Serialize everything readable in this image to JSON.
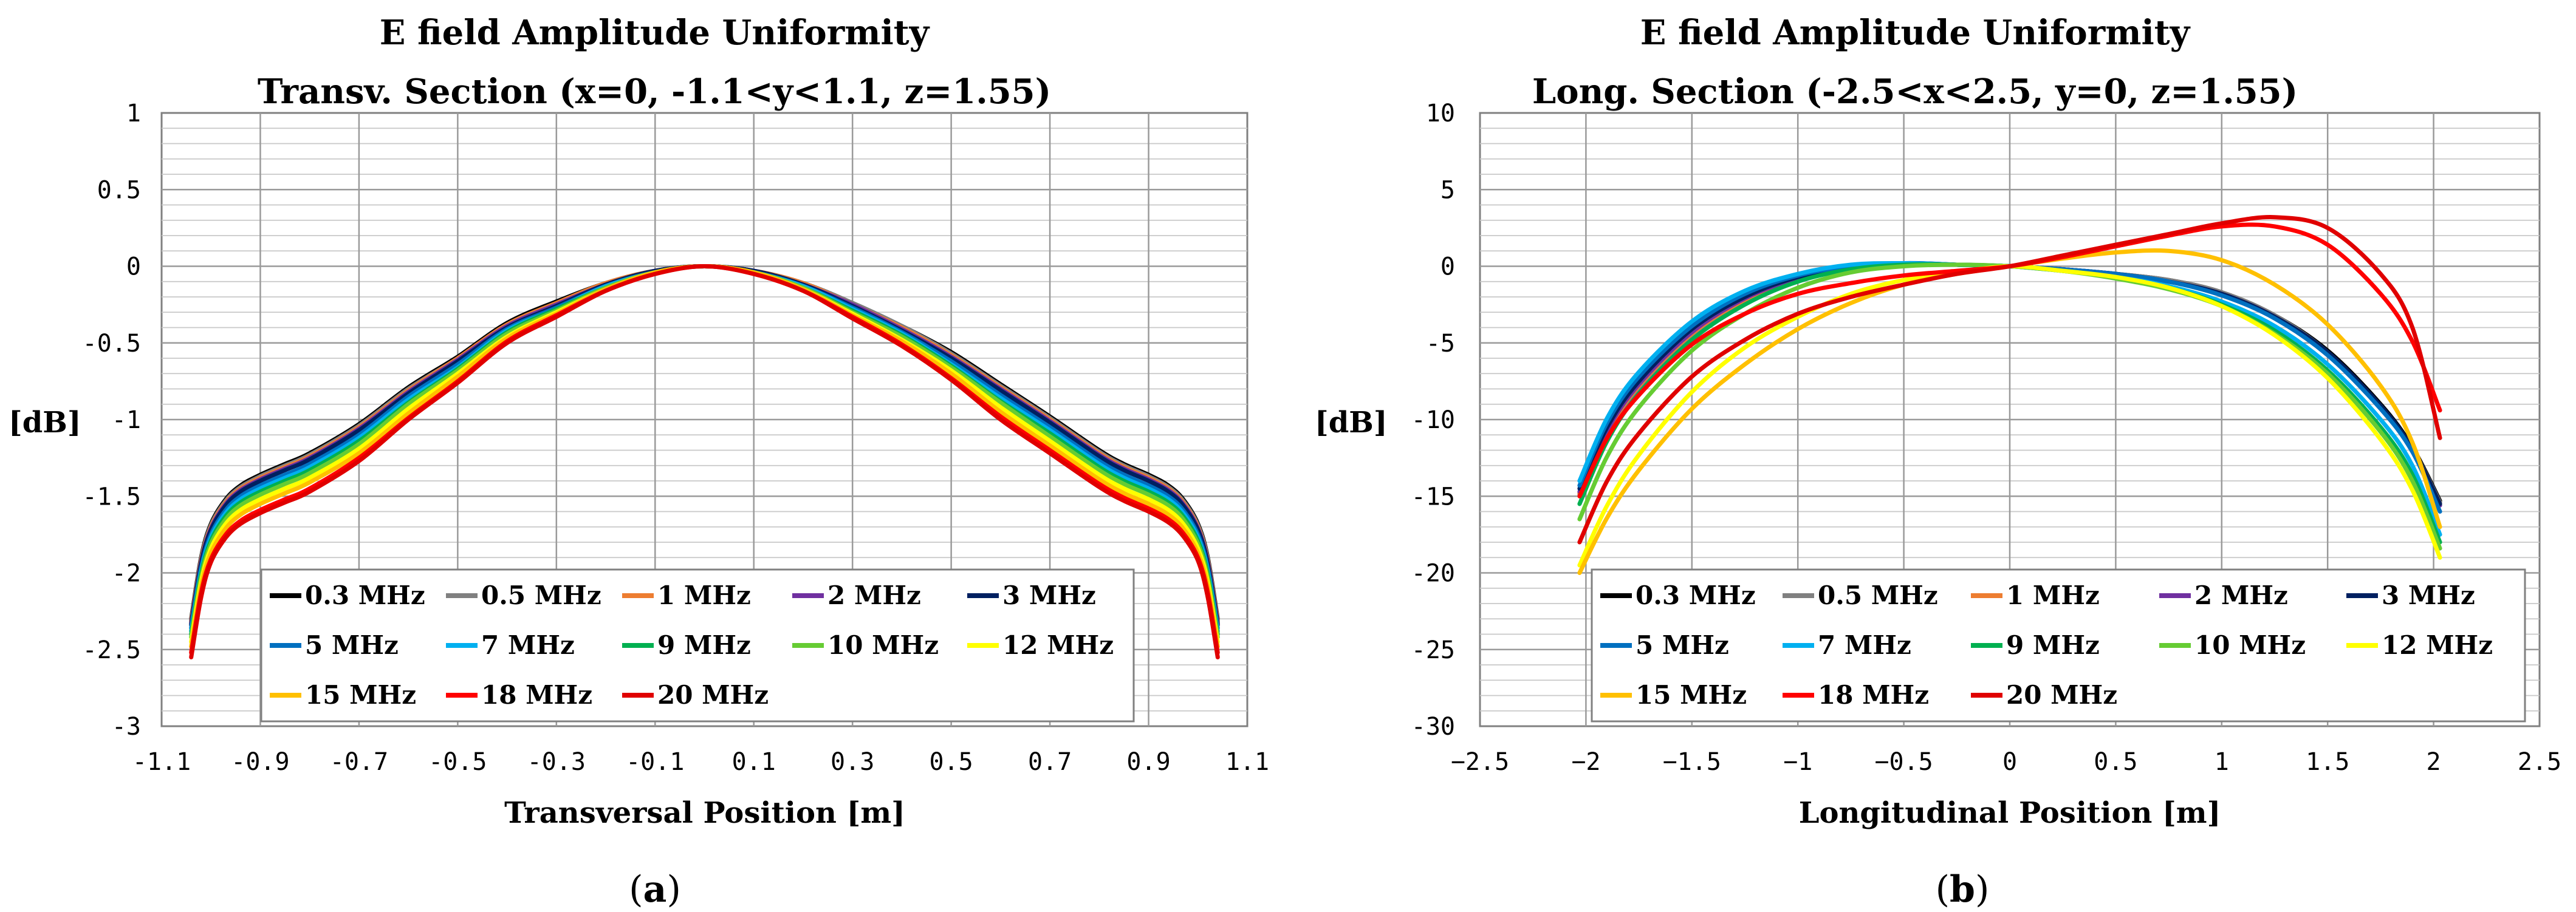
{
  "panels": [
    {
      "label": "a",
      "chart_data": {
        "type": "line",
        "title": [
          "E field Amplitude Uniformity",
          "Transv. Section (x=0, -1.1<y<1.1, z=1.55)"
        ],
        "xlabel": "Transversal Position [m]",
        "ylabel": "[dB]",
        "xlim": [
          -1.1,
          1.1
        ],
        "ylim": [
          -3,
          1
        ],
        "xticks": [
          -1.1,
          -0.9,
          -0.7,
          -0.5,
          -0.3,
          -0.1,
          0.1,
          0.3,
          0.5,
          0.7,
          0.9,
          1.1
        ],
        "xtick_labels": [
          "-1.1",
          "-0.9",
          "-0.7",
          "-0.5",
          "-0.3",
          "-0.1",
          "0.1",
          "0.3",
          "0.5",
          "0.7",
          "0.9",
          "1.1"
        ],
        "yticks": [
          -3,
          -2.5,
          -2,
          -1.5,
          -1,
          -0.5,
          0,
          0.5,
          1
        ],
        "ytick_labels": [
          "-3",
          "-2.5",
          "-2",
          "-1.5",
          "-1",
          "-0.5",
          "0",
          "0.5",
          "1"
        ],
        "minor_y_step": 0.1,
        "x": [
          -1.04,
          -1.02,
          -1.0,
          -0.97,
          -0.94,
          -0.9,
          -0.85,
          -0.8,
          -0.7,
          -0.6,
          -0.5,
          -0.4,
          -0.3,
          -0.2,
          -0.1,
          0.0,
          0.1,
          0.2,
          0.3,
          0.4,
          0.5,
          0.6,
          0.7,
          0.8,
          0.85,
          0.9,
          0.94,
          0.97,
          1.0,
          1.02,
          1.04
        ],
        "series": [
          {
            "name": "0.3 MHz",
            "color": "#000000",
            "values": [
              -2.3,
              -1.9,
              -1.68,
              -1.52,
              -1.43,
              -1.36,
              -1.29,
              -1.22,
              -1.03,
              -0.79,
              -0.59,
              -0.37,
              -0.23,
              -0.11,
              -0.03,
              0.0,
              -0.03,
              -0.11,
              -0.24,
              -0.39,
              -0.56,
              -0.77,
              -0.98,
              -1.2,
              -1.29,
              -1.36,
              -1.43,
              -1.52,
              -1.68,
              -1.9,
              -2.3
            ]
          },
          {
            "name": "0.5 MHz",
            "color": "#808080",
            "values": [
              -2.31,
              -1.91,
              -1.69,
              -1.53,
              -1.44,
              -1.37,
              -1.3,
              -1.23,
              -1.04,
              -0.8,
              -0.6,
              -0.38,
              -0.24,
              -0.11,
              -0.03,
              0.0,
              -0.03,
              -0.11,
              -0.24,
              -0.39,
              -0.57,
              -0.78,
              -0.99,
              -1.21,
              -1.3,
              -1.37,
              -1.44,
              -1.53,
              -1.69,
              -1.91,
              -2.31
            ]
          },
          {
            "name": "1 MHz",
            "color": "#ED7D31",
            "values": [
              -2.32,
              -1.92,
              -1.7,
              -1.54,
              -1.45,
              -1.38,
              -1.31,
              -1.24,
              -1.05,
              -0.81,
              -0.6,
              -0.38,
              -0.24,
              -0.11,
              -0.03,
              0.0,
              -0.03,
              -0.11,
              -0.25,
              -0.4,
              -0.58,
              -0.79,
              -1.0,
              -1.22,
              -1.31,
              -1.38,
              -1.45,
              -1.54,
              -1.7,
              -1.92,
              -2.32
            ]
          },
          {
            "name": "2 MHz",
            "color": "#7030A0",
            "values": [
              -2.33,
              -1.93,
              -1.71,
              -1.55,
              -1.46,
              -1.39,
              -1.32,
              -1.25,
              -1.06,
              -0.82,
              -0.61,
              -0.39,
              -0.25,
              -0.12,
              -0.03,
              0.0,
              -0.03,
              -0.12,
              -0.25,
              -0.41,
              -0.59,
              -0.8,
              -1.01,
              -1.23,
              -1.32,
              -1.39,
              -1.46,
              -1.55,
              -1.71,
              -1.93,
              -2.33
            ]
          },
          {
            "name": "3 MHz",
            "color": "#002060",
            "values": [
              -2.34,
              -1.94,
              -1.72,
              -1.56,
              -1.47,
              -1.4,
              -1.33,
              -1.26,
              -1.07,
              -0.83,
              -0.62,
              -0.4,
              -0.26,
              -0.12,
              -0.03,
              0.0,
              -0.03,
              -0.12,
              -0.26,
              -0.42,
              -0.6,
              -0.81,
              -1.02,
              -1.24,
              -1.33,
              -1.4,
              -1.47,
              -1.56,
              -1.72,
              -1.94,
              -2.34
            ]
          },
          {
            "name": "5 MHz",
            "color": "#0070C0",
            "values": [
              -2.36,
              -1.97,
              -1.75,
              -1.59,
              -1.5,
              -1.43,
              -1.36,
              -1.29,
              -1.1,
              -0.85,
              -0.64,
              -0.41,
              -0.27,
              -0.13,
              -0.04,
              0.0,
              -0.04,
              -0.13,
              -0.27,
              -0.43,
              -0.62,
              -0.84,
              -1.05,
              -1.27,
              -1.36,
              -1.43,
              -1.5,
              -1.59,
              -1.75,
              -1.97,
              -2.36
            ]
          },
          {
            "name": "7 MHz",
            "color": "#00B0F0",
            "values": [
              -2.38,
              -1.99,
              -1.77,
              -1.61,
              -1.52,
              -1.45,
              -1.38,
              -1.31,
              -1.12,
              -0.87,
              -0.66,
              -0.42,
              -0.28,
              -0.13,
              -0.04,
              0.0,
              -0.04,
              -0.13,
              -0.28,
              -0.44,
              -0.64,
              -0.86,
              -1.07,
              -1.29,
              -1.38,
              -1.45,
              -1.52,
              -1.61,
              -1.77,
              -1.99,
              -2.38
            ]
          },
          {
            "name": "9 MHz",
            "color": "#00B050",
            "values": [
              -2.4,
              -2.01,
              -1.79,
              -1.63,
              -1.54,
              -1.47,
              -1.4,
              -1.33,
              -1.14,
              -0.89,
              -0.67,
              -0.43,
              -0.28,
              -0.14,
              -0.04,
              0.0,
              -0.04,
              -0.14,
              -0.29,
              -0.45,
              -0.65,
              -0.88,
              -1.09,
              -1.31,
              -1.4,
              -1.47,
              -1.54,
              -1.63,
              -1.79,
              -2.01,
              -2.4
            ]
          },
          {
            "name": "10 MHz",
            "color": "#66CC33",
            "values": [
              -2.42,
              -2.03,
              -1.81,
              -1.65,
              -1.56,
              -1.49,
              -1.42,
              -1.35,
              -1.16,
              -0.9,
              -0.68,
              -0.44,
              -0.29,
              -0.14,
              -0.04,
              0.0,
              -0.04,
              -0.14,
              -0.3,
              -0.46,
              -0.66,
              -0.89,
              -1.11,
              -1.33,
              -1.42,
              -1.49,
              -1.56,
              -1.65,
              -1.81,
              -2.03,
              -2.42
            ]
          },
          {
            "name": "12 MHz",
            "color": "#FFFF00",
            "values": [
              -2.45,
              -2.06,
              -1.84,
              -1.68,
              -1.59,
              -1.52,
              -1.45,
              -1.38,
              -1.19,
              -0.93,
              -0.7,
              -0.46,
              -0.3,
              -0.15,
              -0.04,
              0.0,
              -0.04,
              -0.15,
              -0.31,
              -0.48,
              -0.68,
              -0.92,
              -1.14,
              -1.36,
              -1.45,
              -1.52,
              -1.59,
              -1.68,
              -1.84,
              -2.06,
              -2.45
            ]
          },
          {
            "name": "15 MHz",
            "color": "#FFC000",
            "values": [
              -2.48,
              -2.09,
              -1.87,
              -1.71,
              -1.62,
              -1.55,
              -1.48,
              -1.41,
              -1.22,
              -0.96,
              -0.72,
              -0.47,
              -0.31,
              -0.15,
              -0.04,
              0.0,
              -0.04,
              -0.15,
              -0.32,
              -0.49,
              -0.7,
              -0.95,
              -1.17,
              -1.39,
              -1.48,
              -1.55,
              -1.62,
              -1.71,
              -1.87,
              -2.09,
              -2.48
            ]
          },
          {
            "name": "18 MHz",
            "color": "#FF0000",
            "values": [
              -2.52,
              -2.13,
              -1.91,
              -1.75,
              -1.66,
              -1.59,
              -1.52,
              -1.45,
              -1.25,
              -0.99,
              -0.75,
              -0.49,
              -0.32,
              -0.16,
              -0.05,
              0.0,
              -0.05,
              -0.16,
              -0.33,
              -0.51,
              -0.73,
              -0.98,
              -1.2,
              -1.42,
              -1.51,
              -1.58,
              -1.65,
              -1.74,
              -1.9,
              -2.13,
              -2.52
            ]
          },
          {
            "name": "20 MHz",
            "color": "#E00000",
            "values": [
              -2.55,
              -2.16,
              -1.93,
              -1.77,
              -1.68,
              -1.61,
              -1.54,
              -1.47,
              -1.27,
              -1.0,
              -0.76,
              -0.5,
              -0.33,
              -0.16,
              -0.05,
              0.0,
              -0.05,
              -0.16,
              -0.34,
              -0.52,
              -0.74,
              -1.0,
              -1.22,
              -1.44,
              -1.53,
              -1.6,
              -1.67,
              -1.76,
              -1.92,
              -2.16,
              -2.55
            ]
          }
        ]
      }
    },
    {
      "label": "b",
      "chart_data": {
        "type": "line",
        "title": [
          "E field Amplitude Uniformity",
          "Long. Section (-2.5<x<2.5, y=0, z=1.55)"
        ],
        "xlabel": "Longitudinal Position [m]",
        "ylabel": "[dB]",
        "xlim": [
          -2.5,
          2.5
        ],
        "ylim": [
          -30,
          10
        ],
        "xticks": [
          -2.5,
          -2,
          -1.5,
          -1,
          -0.5,
          0,
          0.5,
          1,
          1.5,
          2,
          2.5
        ],
        "xtick_labels": [
          "−2.5",
          "−2",
          "−1.5",
          "−1",
          "−0.5",
          "0",
          "0.5",
          "1",
          "1.5",
          "2",
          "2.5"
        ],
        "yticks": [
          -30,
          -25,
          -20,
          -15,
          -10,
          -5,
          0,
          5,
          10
        ],
        "ytick_labels": [
          "-30",
          "-25",
          "-20",
          "-15",
          "-10",
          "-5",
          "0",
          "5",
          "10"
        ],
        "minor_y_step": 1,
        "x": [
          -2.03,
          -1.9,
          -1.75,
          -1.5,
          -1.25,
          -1.0,
          -0.75,
          -0.5,
          -0.25,
          0.0,
          0.25,
          0.5,
          0.75,
          1.0,
          1.25,
          1.5,
          1.75,
          1.9,
          2.03
        ],
        "series": [
          {
            "name": "0.3 MHz",
            "color": "#000000",
            "values": [
              -14.8,
              -10.8,
              -7.8,
              -4.4,
              -2.2,
              -0.9,
              -0.2,
              0.1,
              0.1,
              0.0,
              -0.2,
              -0.5,
              -0.9,
              -1.7,
              -3.2,
              -5.5,
              -9.0,
              -11.8,
              -15.3
            ]
          },
          {
            "name": "0.5 MHz",
            "color": "#808080",
            "values": [
              -14.9,
              -10.9,
              -7.9,
              -4.5,
              -2.2,
              -0.9,
              -0.2,
              0.1,
              0.1,
              0.0,
              -0.2,
              -0.5,
              -0.9,
              -1.7,
              -3.2,
              -5.6,
              -9.1,
              -11.9,
              -15.4
            ]
          },
          {
            "name": "1 MHz",
            "color": "#ED7D31",
            "values": [
              -14.8,
              -10.8,
              -7.8,
              -4.4,
              -2.2,
              -0.9,
              -0.2,
              0.1,
              0.1,
              0.0,
              -0.2,
              -0.5,
              -1.0,
              -1.8,
              -3.3,
              -5.7,
              -9.2,
              -12.0,
              -15.5
            ]
          },
          {
            "name": "2 MHz",
            "color": "#7030A0",
            "values": [
              -14.7,
              -10.7,
              -7.7,
              -4.3,
              -2.1,
              -0.8,
              -0.2,
              0.1,
              0.1,
              0.0,
              -0.2,
              -0.5,
              -1.0,
              -1.8,
              -3.3,
              -5.7,
              -9.2,
              -12.0,
              -15.6
            ]
          },
          {
            "name": "3 MHz",
            "color": "#002060",
            "values": [
              -14.5,
              -10.5,
              -7.5,
              -4.1,
              -2.0,
              -0.7,
              -0.1,
              0.2,
              0.1,
              0.0,
              -0.2,
              -0.5,
              -1.0,
              -1.8,
              -3.3,
              -5.6,
              -9.1,
              -11.9,
              -15.5
            ]
          },
          {
            "name": "5 MHz",
            "color": "#0070C0",
            "values": [
              -14.3,
              -10.2,
              -7.2,
              -3.9,
              -1.8,
              -0.6,
              0.0,
              0.2,
              0.1,
              0.0,
              -0.2,
              -0.5,
              -1.0,
              -1.9,
              -3.4,
              -5.8,
              -9.3,
              -12.1,
              -16.0
            ]
          },
          {
            "name": "7 MHz",
            "color": "#00B0F0",
            "values": [
              -14.0,
              -9.9,
              -6.9,
              -3.6,
              -1.6,
              -0.5,
              0.1,
              0.2,
              0.1,
              0.0,
              -0.3,
              -0.7,
              -1.3,
              -2.3,
              -3.9,
              -6.4,
              -10.0,
              -13.0,
              -17.5
            ]
          },
          {
            "name": "9 MHz",
            "color": "#00B050",
            "values": [
              -15.5,
              -11.4,
              -8.3,
              -4.8,
              -2.5,
              -1.0,
              -0.2,
              0.1,
              0.1,
              0.0,
              -0.3,
              -0.7,
              -1.4,
              -2.5,
              -4.2,
              -6.8,
              -10.5,
              -13.6,
              -18.0
            ]
          },
          {
            "name": "10 MHz",
            "color": "#66CC33",
            "values": [
              -16.5,
              -12.4,
              -9.2,
              -5.5,
              -3.1,
              -1.4,
              -0.4,
              0.0,
              0.1,
              0.0,
              -0.3,
              -0.8,
              -1.5,
              -2.6,
              -4.4,
              -7.0,
              -10.8,
              -14.0,
              -18.4
            ]
          },
          {
            "name": "12 MHz",
            "color": "#FFFF00",
            "values": [
              -19.5,
              -15.6,
              -12.3,
              -8.2,
              -5.3,
              -3.3,
              -1.8,
              -0.9,
              -0.4,
              0.0,
              -0.3,
              -0.7,
              -1.4,
              -2.6,
              -4.5,
              -7.3,
              -11.3,
              -14.6,
              -19.0
            ]
          },
          {
            "name": "15 MHz",
            "color": "#FFC000",
            "values": [
              -20.0,
              -16.4,
              -13.3,
              -9.3,
              -6.4,
              -4.1,
              -2.4,
              -1.2,
              -0.5,
              0.0,
              0.5,
              0.9,
              1.0,
              0.4,
              -1.2,
              -3.8,
              -7.8,
              -11.5,
              -17.0
            ]
          },
          {
            "name": "18 MHz",
            "color": "#FF0000",
            "values": [
              -15.0,
              -11.2,
              -8.4,
              -5.1,
              -3.1,
              -1.8,
              -1.1,
              -0.6,
              -0.3,
              0.0,
              0.6,
              1.3,
              2.0,
              2.6,
              2.6,
              1.4,
              -1.8,
              -4.9,
              -9.4
            ]
          },
          {
            "name": "20 MHz",
            "color": "#E00000",
            "values": [
              -18.0,
              -14.0,
              -10.9,
              -7.2,
              -4.8,
              -3.1,
              -2.0,
              -1.2,
              -0.5,
              0.0,
              0.7,
              1.4,
              2.1,
              2.8,
              3.2,
              2.5,
              -0.5,
              -4.0,
              -11.2
            ]
          }
        ]
      }
    }
  ]
}
